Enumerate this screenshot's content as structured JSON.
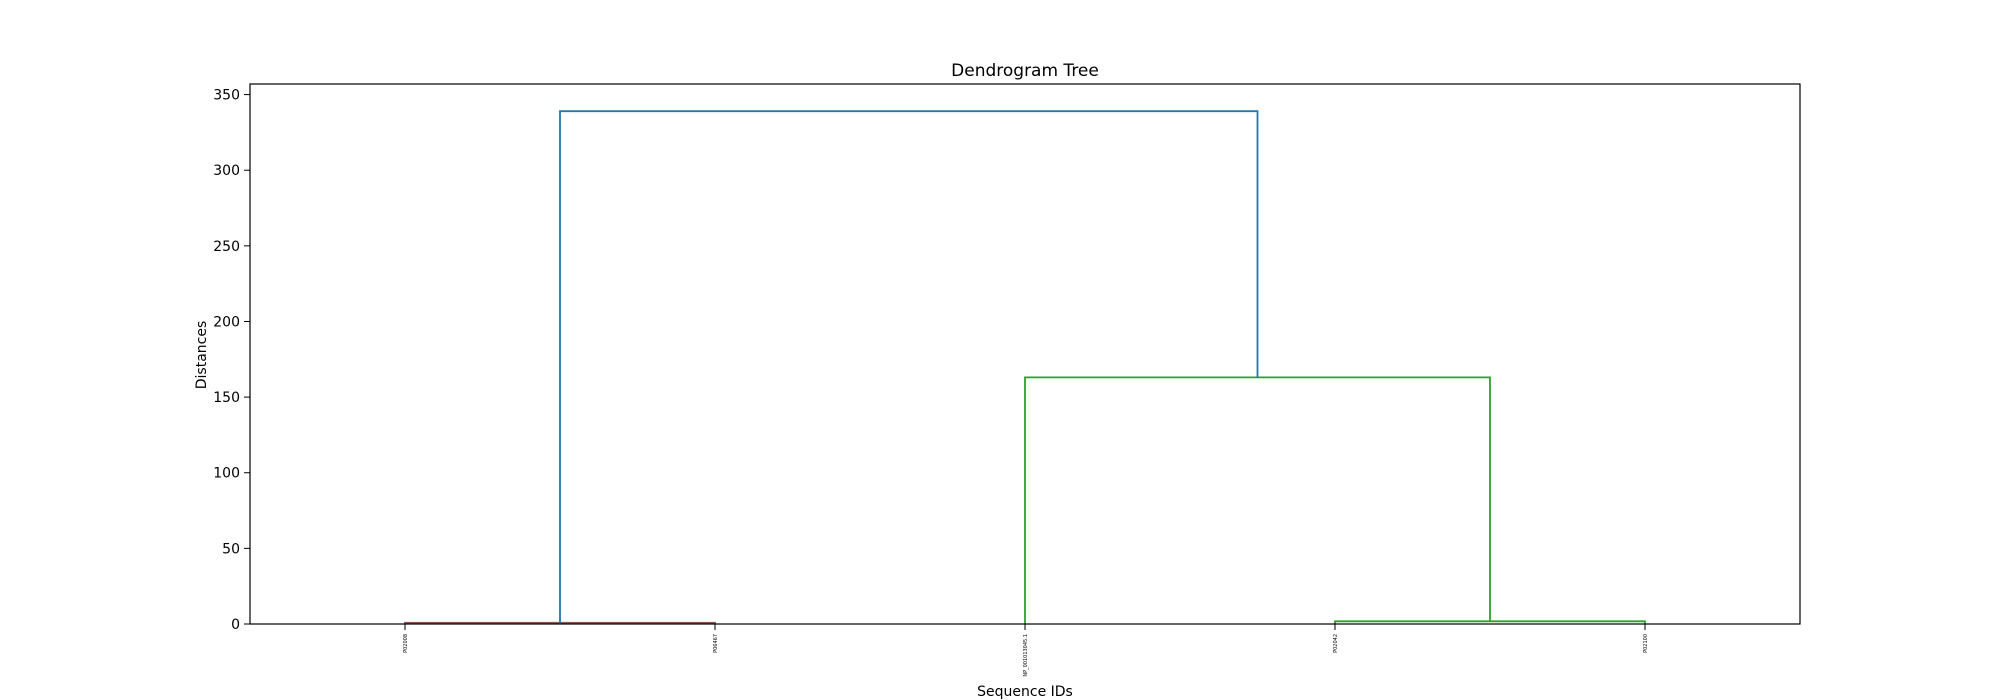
{
  "chart_data": {
    "type": "dendrogram",
    "title": "Dendrogram Tree",
    "xlabel": "Sequence IDs",
    "ylabel": "Distances",
    "ylim": [
      0,
      357
    ],
    "yticks": [
      0,
      50,
      100,
      150,
      200,
      250,
      300,
      350
    ],
    "leaves": [
      "P02008",
      "P06467",
      "NP_001013045.1",
      "P02042",
      "P02100"
    ],
    "links": [
      {
        "x": [
          5,
          5,
          15,
          15
        ],
        "y": [
          0,
          0.8,
          0.8,
          0
        ],
        "color": "#8c564b"
      },
      {
        "x": [
          35,
          35,
          45,
          45
        ],
        "y": [
          0,
          1.8,
          1.8,
          0
        ],
        "color": "#2ca02c"
      },
      {
        "x": [
          25,
          25,
          40,
          40
        ],
        "y": [
          0,
          163,
          163,
          1.8
        ],
        "color": "#2ca02c"
      },
      {
        "x": [
          10,
          10,
          32.5,
          32.5
        ],
        "y": [
          0.8,
          339,
          339,
          163
        ],
        "color": "#1f77b4"
      }
    ],
    "grid": false
  }
}
